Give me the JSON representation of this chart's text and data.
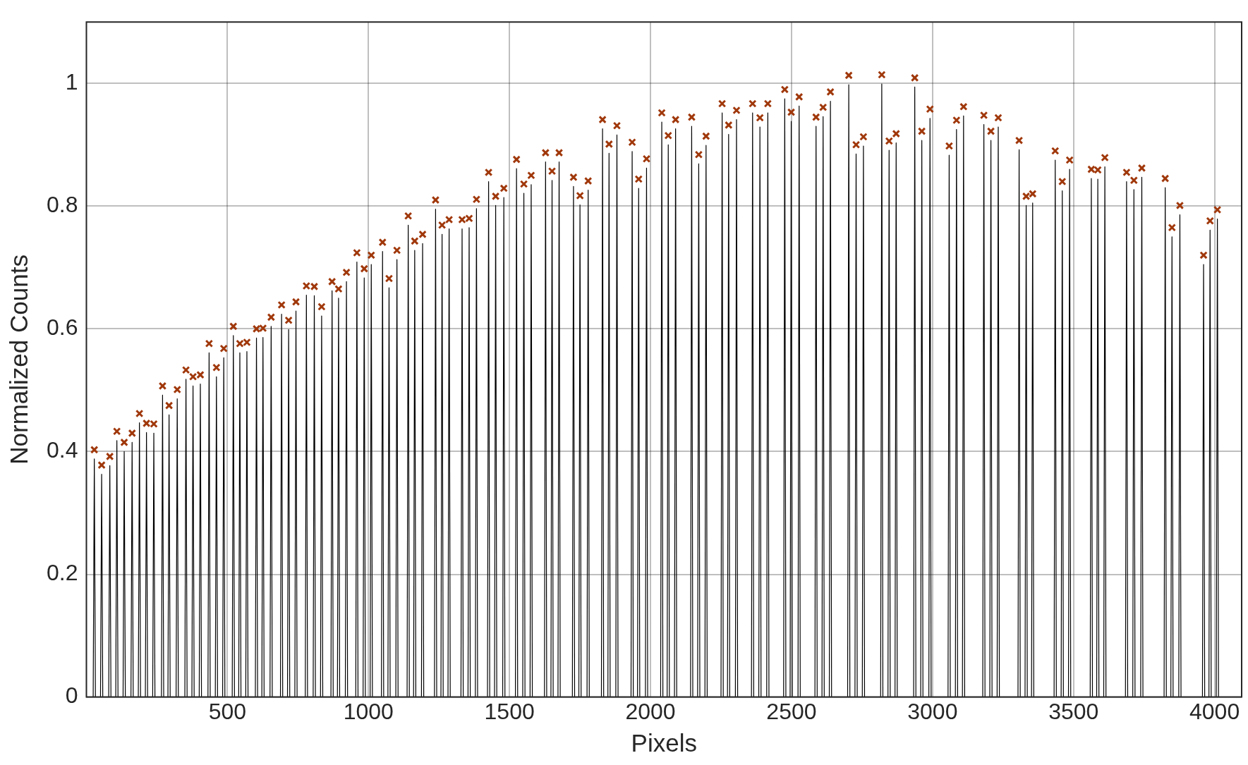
{
  "chart_data": {
    "type": "line",
    "xlabel": "Pixels",
    "ylabel": "Normalized Counts",
    "xlim": [
      0,
      4096
    ],
    "ylim": [
      0,
      1.1
    ],
    "xticks": [
      500,
      1000,
      1500,
      2000,
      2500,
      3000,
      3500,
      4000
    ],
    "yticks": [
      0,
      0.2,
      0.4,
      0.6,
      0.8,
      1
    ],
    "grid": true,
    "series": [
      {
        "type": "line",
        "color": "#000000",
        "marker": "none",
        "x": [
          24,
          28,
          32,
          50,
          54,
          58,
          79,
          83,
          87,
          104,
          108,
          112,
          130,
          134,
          138,
          158,
          162,
          166,
          184,
          188,
          192,
          209,
          213,
          217,
          235,
          239,
          243,
          266,
          270,
          274,
          289,
          293,
          297,
          318,
          322,
          326,
          349,
          353,
          357,
          374,
          378,
          382,
          400,
          404,
          408,
          431,
          435,
          439,
          457,
          461,
          465,
          483,
          487,
          491,
          517,
          521,
          525,
          540,
          544,
          548,
          565,
          569,
          573,
          599,
          603,
          607,
          622,
          626,
          630,
          651,
          655,
          659,
          688,
          692,
          696,
          713,
          717,
          721,
          739,
          743,
          747,
          776,
          780,
          784,
          804,
          808,
          812,
          830,
          834,
          838,
          867,
          871,
          875,
          890,
          894,
          898,
          918,
          922,
          926,
          955,
          959,
          963,
          981,
          985,
          989,
          1006,
          1010,
          1014,
          1046,
          1050,
          1054,
          1069,
          1073,
          1077,
          1097,
          1101,
          1105,
          1137,
          1141,
          1145,
          1160,
          1164,
          1168,
          1188,
          1192,
          1196,
          1234,
          1238,
          1242,
          1257,
          1261,
          1265,
          1282,
          1286,
          1290,
          1328,
          1332,
          1336,
          1353,
          1357,
          1361,
          1379,
          1383,
          1387,
          1422,
          1426,
          1430,
          1447,
          1451,
          1455,
          1476,
          1480,
          1484,
          1521,
          1525,
          1529,
          1547,
          1551,
          1555,
          1573,
          1577,
          1581,
          1624,
          1628,
          1632,
          1647,
          1651,
          1655,
          1672,
          1676,
          1680,
          1723,
          1727,
          1731,
          1746,
          1750,
          1754,
          1775,
          1779,
          1783,
          1826,
          1830,
          1834,
          1849,
          1853,
          1857,
          1877,
          1881,
          1885,
          1931,
          1935,
          1939,
          1954,
          1958,
          1962,
          1982,
          1986,
          1990,
          2036,
          2040,
          2044,
          2059,
          2063,
          2067,
          2085,
          2089,
          2093,
          2142,
          2146,
          2150,
          2167,
          2171,
          2175,
          2193,
          2197,
          2201,
          2250,
          2254,
          2258,
          2273,
          2277,
          2281,
          2301,
          2305,
          2309,
          2358,
          2362,
          2366,
          2384,
          2388,
          2392,
          2412,
          2416,
          2420,
          2472,
          2476,
          2480,
          2495,
          2499,
          2503,
          2523,
          2527,
          2531,
          2583,
          2587,
          2591,
          2608,
          2612,
          2616,
          2634,
          2638,
          2642,
          2699,
          2703,
          2707,
          2725,
          2729,
          2733,
          2751,
          2755,
          2759,
          2816,
          2820,
          2824,
          2842,
          2846,
          2850,
          2867,
          2871,
          2875,
          2933,
          2937,
          2941,
          2958,
          2962,
          2966,
          2987,
          2991,
          2995,
          3055,
          3059,
          3063,
          3081,
          3085,
          3089,
          3106,
          3110,
          3114,
          3178,
          3182,
          3186,
          3203,
          3207,
          3211,
          3229,
          3233,
          3237,
          3303,
          3307,
          3311,
          3328,
          3332,
          3336,
          3351,
          3355,
          3359,
          3431,
          3435,
          3439,
          3456,
          3460,
          3464,
          3482,
          3486,
          3490,
          3559,
          3563,
          3567,
          3582,
          3586,
          3590,
          3607,
          3611,
          3615,
          3684,
          3688,
          3692,
          3710,
          3714,
          3718,
          3738,
          3742,
          3746,
          3821,
          3825,
          3829,
          3845,
          3849,
          3853,
          3873,
          3877,
          3881,
          3957,
          3961,
          3965,
          3980,
          3984,
          3988,
          4006,
          4010,
          4014
        ],
        "values": [
          0,
          0.388,
          0,
          0,
          0.363,
          0,
          0,
          0.377,
          0,
          0,
          0.418,
          0,
          0,
          0.4,
          0,
          0,
          0.415,
          0,
          0,
          0.447,
          0,
          0,
          0.431,
          0,
          0,
          0.43,
          0,
          0,
          0.492,
          0,
          0,
          0.46,
          0,
          0,
          0.486,
          0,
          0,
          0.518,
          0,
          0,
          0.507,
          0,
          0,
          0.51,
          0,
          0,
          0.561,
          0,
          0,
          0.522,
          0,
          0,
          0.553,
          0,
          0,
          0.589,
          0,
          0,
          0.561,
          0,
          0,
          0.563,
          0,
          0,
          0.585,
          0,
          0,
          0.586,
          0,
          0,
          0.604,
          0,
          0,
          0.624,
          0,
          0,
          0.599,
          0,
          0,
          0.629,
          0,
          0,
          0.655,
          0,
          0,
          0.654,
          0,
          0,
          0.621,
          0,
          0,
          0.662,
          0,
          0,
          0.65,
          0,
          0,
          0.677,
          0,
          0,
          0.709,
          0,
          0,
          0.683,
          0,
          0,
          0.705,
          0,
          0,
          0.726,
          0,
          0,
          0.667,
          0,
          0,
          0.713,
          0,
          0,
          0.769,
          0,
          0,
          0.728,
          0,
          0,
          0.739,
          0,
          0,
          0.795,
          0,
          0,
          0.754,
          0,
          0,
          0.763,
          0,
          0,
          0.763,
          0,
          0,
          0.765,
          0,
          0,
          0.796,
          0,
          0,
          0.84,
          0,
          0,
          0.801,
          0,
          0,
          0.814,
          0,
          0,
          0.861,
          0,
          0,
          0.821,
          0,
          0,
          0.835,
          0,
          0,
          0.872,
          0,
          0,
          0.842,
          0,
          0,
          0.872,
          0,
          0,
          0.832,
          0,
          0,
          0.802,
          0,
          0,
          0.826,
          0,
          0,
          0.926,
          0,
          0,
          0.886,
          0,
          0,
          0.916,
          0,
          0,
          0.889,
          0,
          0,
          0.829,
          0,
          0,
          0.862,
          0,
          0,
          0.937,
          0,
          0,
          0.9,
          0,
          0,
          0.926,
          0,
          0,
          0.93,
          0,
          0,
          0.869,
          0,
          0,
          0.899,
          0,
          0,
          0.952,
          0,
          0,
          0.917,
          0,
          0,
          0.941,
          0,
          0,
          0.952,
          0,
          0,
          0.929,
          0,
          0,
          0.952,
          0,
          0,
          0.975,
          0,
          0,
          0.938,
          0,
          0,
          0.963,
          0,
          0,
          0.93,
          0,
          0,
          0.946,
          0,
          0,
          0.971,
          0,
          0,
          0.998,
          0,
          0,
          0.885,
          0,
          0,
          0.898,
          0,
          0,
          0.999,
          0,
          0,
          0.891,
          0,
          0,
          0.903,
          0,
          0,
          0.994,
          0,
          0,
          0.907,
          0,
          0,
          0.943,
          0,
          0,
          0.883,
          0,
          0,
          0.925,
          0,
          0,
          0.947,
          0,
          0,
          0.933,
          0,
          0,
          0.907,
          0,
          0,
          0.929,
          0,
          0,
          0.892,
          0,
          0,
          0.801,
          0,
          0,
          0.805,
          0,
          0,
          0.875,
          0,
          0,
          0.825,
          0,
          0,
          0.86,
          0,
          0,
          0.845,
          0,
          0,
          0.844,
          0,
          0,
          0.864,
          0,
          0,
          0.84,
          0,
          0,
          0.827,
          0,
          0,
          0.847,
          0,
          0,
          0.83,
          0,
          0,
          0.75,
          0,
          0,
          0.786,
          0,
          0,
          0.705,
          0,
          0,
          0.761,
          0,
          0,
          0.779,
          0
        ]
      },
      {
        "type": "scatter",
        "color": "#a0380b",
        "marker": "cross",
        "x": [
          28,
          54,
          83,
          108,
          134,
          162,
          188,
          213,
          239,
          270,
          293,
          322,
          353,
          378,
          404,
          435,
          461,
          487,
          521,
          544,
          569,
          603,
          626,
          655,
          692,
          717,
          743,
          780,
          808,
          834,
          871,
          894,
          922,
          959,
          985,
          1010,
          1050,
          1073,
          1101,
          1141,
          1164,
          1192,
          1238,
          1261,
          1286,
          1332,
          1357,
          1383,
          1426,
          1451,
          1480,
          1525,
          1551,
          1577,
          1628,
          1651,
          1676,
          1727,
          1750,
          1779,
          1830,
          1853,
          1881,
          1935,
          1958,
          1986,
          2040,
          2063,
          2089,
          2146,
          2171,
          2197,
          2254,
          2277,
          2305,
          2362,
          2388,
          2416,
          2476,
          2499,
          2527,
          2587,
          2612,
          2638,
          2703,
          2729,
          2755,
          2820,
          2846,
          2871,
          2937,
          2962,
          2991,
          3059,
          3085,
          3110,
          3182,
          3207,
          3233,
          3307,
          3332,
          3355,
          3435,
          3460,
          3486,
          3563,
          3586,
          3611,
          3688,
          3714,
          3742,
          3825,
          3849,
          3877,
          3961,
          3984,
          4010
        ],
        "values": [
          0.403,
          0.378,
          0.392,
          0.433,
          0.415,
          0.43,
          0.462,
          0.446,
          0.445,
          0.507,
          0.475,
          0.501,
          0.533,
          0.522,
          0.525,
          0.576,
          0.537,
          0.568,
          0.604,
          0.576,
          0.578,
          0.6,
          0.601,
          0.619,
          0.639,
          0.614,
          0.644,
          0.67,
          0.669,
          0.636,
          0.677,
          0.665,
          0.692,
          0.724,
          0.698,
          0.72,
          0.741,
          0.682,
          0.728,
          0.784,
          0.743,
          0.754,
          0.81,
          0.769,
          0.778,
          0.778,
          0.78,
          0.811,
          0.855,
          0.816,
          0.829,
          0.876,
          0.836,
          0.85,
          0.887,
          0.857,
          0.887,
          0.847,
          0.817,
          0.841,
          0.941,
          0.901,
          0.931,
          0.904,
          0.844,
          0.877,
          0.952,
          0.915,
          0.941,
          0.945,
          0.884,
          0.914,
          0.967,
          0.932,
          0.956,
          0.967,
          0.944,
          0.967,
          0.99,
          0.953,
          0.978,
          0.945,
          0.961,
          0.986,
          1.013,
          0.9,
          0.913,
          1.014,
          0.906,
          0.918,
          1.009,
          0.922,
          0.958,
          0.898,
          0.94,
          0.962,
          0.948,
          0.922,
          0.944,
          0.907,
          0.816,
          0.82,
          0.89,
          0.84,
          0.875,
          0.86,
          0.859,
          0.879,
          0.855,
          0.842,
          0.862,
          0.845,
          0.765,
          0.801,
          0.72,
          0.776,
          0.794
        ]
      }
    ]
  }
}
